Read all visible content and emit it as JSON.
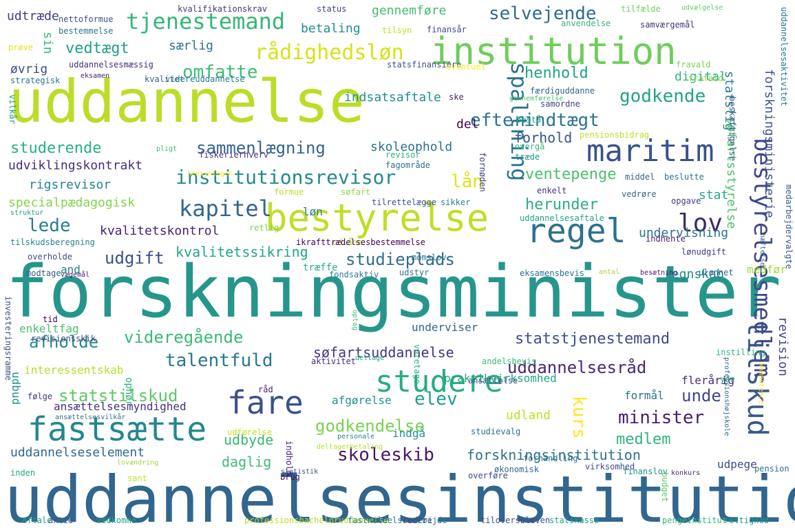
{
  "words": [
    {
      "text": "forskningsminister",
      "color": "#26968c"
    },
    {
      "text": "uddannelsesinstitution",
      "color": "#31668e"
    },
    {
      "text": "uddannelse",
      "color": "#bbdd28"
    },
    {
      "text": "institution",
      "color": "#6fcd5b"
    },
    {
      "text": "bestyrelse",
      "color": "#c0de27"
    },
    {
      "text": "maritim",
      "color": "#3a528b"
    },
    {
      "text": "studere",
      "color": "#27ad80"
    },
    {
      "text": "fastsætte",
      "color": "#23888e"
    },
    {
      "text": "fare",
      "color": "#3b518b"
    },
    {
      "text": "regel",
      "color": "#2c718e"
    },
    {
      "text": "kapitel",
      "color": "#32658e"
    },
    {
      "text": "lov",
      "color": "#3e2a69"
    },
    {
      "text": "tilskud",
      "color": "#38588c"
    },
    {
      "text": "bestyrelsesmedlem",
      "color": "#3f4888"
    },
    {
      "text": "spaltning",
      "color": "#2c738e"
    },
    {
      "text": "tjenestemand",
      "color": "#35b779"
    },
    {
      "text": "rådighedsløn",
      "color": "#d7e219"
    },
    {
      "text": "efterindtægt",
      "color": "#2b758e"
    },
    {
      "text": "vedtægt",
      "color": "#1fa088"
    },
    {
      "text": "omfatte",
      "color": "#3ebc73"
    },
    {
      "text": "selvejende",
      "color": "#2f6b8e"
    },
    {
      "text": "godkende",
      "color": "#23a383"
    },
    {
      "text": "henhold",
      "color": "#20a486"
    },
    {
      "text": "institutionsrevisor",
      "color": "#238a8d"
    },
    {
      "text": "sammenlægning",
      "color": "#33638d"
    },
    {
      "text": "studerende",
      "color": "#2ab07f"
    },
    {
      "text": "ventepenge",
      "color": "#4ac16d"
    },
    {
      "text": "lån",
      "color": "#dde318"
    },
    {
      "text": "forhold",
      "color": "#3b528b"
    },
    {
      "text": "herunder",
      "color": "#29af7f"
    },
    {
      "text": "lede",
      "color": "#287c8e"
    },
    {
      "text": "udgift",
      "color": "#3c4f8a"
    },
    {
      "text": "kvalitetssikring",
      "color": "#22a785"
    },
    {
      "text": "studieplads",
      "color": "#2e6e8e"
    },
    {
      "text": "undervisning",
      "color": "#2d718e"
    },
    {
      "text": "regnskab",
      "color": "#23898e"
    },
    {
      "text": "videregående",
      "color": "#3bbb75"
    },
    {
      "text": "statstjenestemand",
      "color": "#3d4d8a"
    },
    {
      "text": "søfartsuddannelse",
      "color": "#463480"
    },
    {
      "text": "uddannelsesråd",
      "color": "#482878"
    },
    {
      "text": "talentfuld",
      "color": "#2a778e"
    },
    {
      "text": "afholde",
      "color": "#238a8d"
    },
    {
      "text": "statstilskud",
      "color": "#5ec962"
    },
    {
      "text": "elev",
      "color": "#1f9e89"
    },
    {
      "text": "minister",
      "color": "#481f70"
    },
    {
      "text": "unde",
      "color": "#3f4788"
    },
    {
      "text": "medlem",
      "color": "#2fb47c"
    },
    {
      "text": "godkendelse",
      "color": "#7ad151"
    },
    {
      "text": "udland",
      "color": "#c2df23"
    },
    {
      "text": "skoleskib",
      "color": "#481668"
    },
    {
      "text": "forskningsinstitution",
      "color": "#2d708e"
    },
    {
      "text": "uddannelseselement",
      "color": "#31688e"
    },
    {
      "text": "udbyde",
      "color": "#38b977"
    },
    {
      "text": "daglig",
      "color": "#3fbc73"
    },
    {
      "text": "kurs",
      "color": "#fde725"
    },
    {
      "text": "revision",
      "color": "#414487"
    },
    {
      "text": "digital",
      "color": "#31b57b"
    },
    {
      "text": "statslig",
      "color": "#287d8e"
    },
    {
      "text": "søfartsstyrelse",
      "color": "#4ec36b"
    },
    {
      "text": "forskningsministerie",
      "color": "#3b528b"
    },
    {
      "text": "uddannelsesaktivitet",
      "color": "#2a788e"
    },
    {
      "text": "gennemføre",
      "color": "#44bf70"
    },
    {
      "text": "udtræde",
      "color": "#424086"
    },
    {
      "text": "betaling",
      "color": "#218f8d"
    },
    {
      "text": "særlig",
      "color": "#2c728e"
    },
    {
      "text": "sin",
      "color": "#35b779"
    },
    {
      "text": "øvrig",
      "color": "#3c508b"
    },
    {
      "text": "indsatsaftale",
      "color": "#21908d"
    },
    {
      "text": "del",
      "color": "#440154"
    },
    {
      "text": "skoleophold",
      "color": "#2c728e"
    },
    {
      "text": "udviklingskontrakt",
      "color": "#472d7b"
    },
    {
      "text": "rigsrevisor",
      "color": "#26828e"
    },
    {
      "text": "specialpædagogisk",
      "color": "#84d44b"
    },
    {
      "text": "løn",
      "color": "#287c8e"
    },
    {
      "text": "stat",
      "color": "#22a785"
    },
    {
      "text": "kvalitetskontrol",
      "color": "#482173"
    },
    {
      "text": "and",
      "color": "#277f8e"
    },
    {
      "text": "medfør",
      "color": "#a5db36"
    },
    {
      "text": "træffe",
      "color": "#2ab07f"
    },
    {
      "text": "enkeltfag",
      "color": "#4ac16d"
    },
    {
      "text": "underviser",
      "color": "#33638d"
    },
    {
      "text": "interessentskab",
      "color": "#b5de2b"
    },
    {
      "text": "ansættelsesmyndighed",
      "color": "#46307e"
    },
    {
      "text": "praktikvirksomhed",
      "color": "#22a884"
    },
    {
      "text": "afgørelse",
      "color": "#20928c"
    },
    {
      "text": "formål",
      "color": "#2c738e"
    },
    {
      "text": "flerårig",
      "color": "#472a7a"
    },
    {
      "text": "indgå",
      "color": "#21918c"
    },
    {
      "text": "udbud",
      "color": "#21918c"
    },
    {
      "text": "udpege",
      "color": "#3e4a89"
    },
    {
      "text": "kvalifikationskrav",
      "color": "#453781"
    },
    {
      "text": "status",
      "color": "#414487"
    },
    {
      "text": "tilfælde",
      "color": "#6ece58"
    },
    {
      "text": "udvælgelse",
      "color": "#5ec962"
    },
    {
      "text": "nettoformue",
      "color": "#3b528b"
    },
    {
      "text": "bestemmelse",
      "color": "#2a788e"
    },
    {
      "text": "tilsyn",
      "color": "#c2df23"
    },
    {
      "text": "finansår",
      "color": "#3e4989"
    },
    {
      "text": "anvendelse",
      "color": "#35b779"
    },
    {
      "text": "samværgemål",
      "color": "#46327e"
    },
    {
      "text": "prøve",
      "color": "#e5e419"
    },
    {
      "text": "uddannelsesmæssig",
      "color": "#472c7a"
    },
    {
      "text": "statsfinansiere",
      "color": "#3e4c8a"
    },
    {
      "text": "eventuel",
      "color": "#fde725"
    },
    {
      "text": "kvalitet",
      "color": "#34618d"
    },
    {
      "text": "fravald",
      "color": "#7ad151"
    },
    {
      "text": "frafald",
      "color": "#86d549"
    },
    {
      "text": "strategisk",
      "color": "#2a768e"
    },
    {
      "text": "eksamen",
      "color": "#481a6c"
    },
    {
      "text": "videreuddannelse",
      "color": "#297a8e"
    },
    {
      "text": "færdiguddanne",
      "color": "#355f8d"
    },
    {
      "text": "vilkår",
      "color": "#1f9e89"
    },
    {
      "text": "ske",
      "color": "#482475"
    },
    {
      "text": "gennemførelse",
      "color": "#46c06f"
    },
    {
      "text": "samordne",
      "color": "#424186"
    },
    {
      "text": "bestå",
      "color": "#1fa287"
    },
    {
      "text": "pensionsbidrag",
      "color": "#bddf26"
    },
    {
      "text": "beskæftigelse",
      "color": "#38588c"
    },
    {
      "text": "overgå",
      "color": "#35b779"
    },
    {
      "text": "pligt",
      "color": "#3dbc74"
    },
    {
      "text": "fiskerierhverv",
      "color": "#472e7c"
    },
    {
      "text": "revisor",
      "color": "#29af7f"
    },
    {
      "text": "træde",
      "color": "#1f968b"
    },
    {
      "text": "fagområde",
      "color": "#2c738e"
    },
    {
      "text": "fornøden",
      "color": "#414487"
    },
    {
      "text": "hensyntagen",
      "color": "#fde725"
    },
    {
      "text": "middel",
      "color": "#31678e"
    },
    {
      "text": "beslutte",
      "color": "#2a788e"
    },
    {
      "text": "formue",
      "color": "#bddf26"
    },
    {
      "text": "søfart",
      "color": "#90d743"
    },
    {
      "text": "tilrettelægge",
      "color": "#3b528b"
    },
    {
      "text": "enkelt",
      "color": "#472f7d"
    },
    {
      "text": "vedrøre",
      "color": "#31688e"
    },
    {
      "text": "opgave",
      "color": "#443a83"
    },
    {
      "text": "sikker",
      "color": "#25848e"
    },
    {
      "text": "struktur",
      "color": "#1f9a8a"
    },
    {
      "text": "retlig",
      "color": "#7fd34e"
    },
    {
      "text": "uddannelsesaftale",
      "color": "#20a386"
    },
    {
      "text": "indhente",
      "color": "#481b6d"
    },
    {
      "text": "lønudgift",
      "color": "#453882"
    },
    {
      "text": "medarbejdervalgte",
      "color": "#38588c"
    },
    {
      "text": "tilskudsberegning",
      "color": "#25848e"
    },
    {
      "text": "udlåne",
      "color": "#b2dd2d"
    },
    {
      "text": "ikrafttrædelsesbestemmelse",
      "color": "#440154"
    },
    {
      "text": "hæftelse",
      "color": "#33638d"
    },
    {
      "text": "overholde",
      "color": "#3e4a89"
    },
    {
      "text": "momslov",
      "color": "#2c718e"
    },
    {
      "text": "modtage",
      "color": "#38598c"
    },
    {
      "text": "vægemål",
      "color": "#48186a"
    },
    {
      "text": "fondsaktiv",
      "color": "#2a788e"
    },
    {
      "text": "udstyr",
      "color": "#2c728e"
    },
    {
      "text": "eksamensbevis",
      "color": "#2d718e"
    },
    {
      "text": "antal",
      "color": "#a2da37"
    },
    {
      "text": "besætning",
      "color": "#471365"
    },
    {
      "text": "ulønnet",
      "color": "#33638d"
    },
    {
      "text": "investeringsramme",
      "color": "#3d4d8a"
    },
    {
      "text": "tid",
      "color": "#440154"
    },
    {
      "text": "optag",
      "color": "#46c06f"
    },
    {
      "text": "revisionsskik",
      "color": "#404688"
    },
    {
      "text": "deltage",
      "color": "#1fa188"
    },
    {
      "text": "varetage",
      "color": "#2ab07f"
    },
    {
      "text": "instilling",
      "color": "#31b57b"
    },
    {
      "text": "aktivitet",
      "color": "#472c7a"
    },
    {
      "text": "andelsbevis",
      "color": "#3bbb75"
    },
    {
      "text": "professionshøjskole",
      "color": "#31688e"
    },
    {
      "text": "kompetence",
      "color": "#fde725"
    },
    {
      "text": "ophør",
      "color": "#2ab07f"
    },
    {
      "text": "yde",
      "color": "#20a486"
    },
    {
      "text": "følge",
      "color": "#46337f"
    },
    {
      "text": "råd",
      "color": "#481c6e"
    },
    {
      "text": "ansættelse",
      "color": "#3b528b"
    },
    {
      "text": "ansættelsesvilkår",
      "color": "#2c728e"
    },
    {
      "text": "udførelse",
      "color": "#c8e020"
    },
    {
      "text": "studievalg",
      "color": "#2f6c8e"
    },
    {
      "text": "personale",
      "color": "#26828e"
    },
    {
      "text": "deltagerbetaling",
      "color": "#b5de2b"
    },
    {
      "text": "indhold",
      "color": "#481f70"
    },
    {
      "text": "statistik",
      "color": "#3e4c8a"
    },
    {
      "text": "brug",
      "color": "#460b5e"
    },
    {
      "text": "forhandling",
      "color": "#2b758e"
    },
    {
      "text": "virksomhed",
      "color": "#3f4788"
    },
    {
      "text": "økonomisk",
      "color": "#33638d"
    },
    {
      "text": "konkurs",
      "color": "#482979"
    },
    {
      "text": "inden",
      "color": "#22a785"
    },
    {
      "text": "lovændring",
      "color": "#9bd93c"
    },
    {
      "text": "sant",
      "color": "#bddf26"
    },
    {
      "text": "overføre",
      "color": "#3f4788"
    },
    {
      "text": "finanslov",
      "color": "#21918c"
    },
    {
      "text": "budget",
      "color": "#5cc863"
    },
    {
      "text": "pension",
      "color": "#2c728e"
    },
    {
      "text": "aftale",
      "color": "#1fa088"
    },
    {
      "text": "aktie",
      "color": "#38588c"
    },
    {
      "text": "vedkomme",
      "color": "#1fa188"
    },
    {
      "text": "professionsbacheloruddannelse",
      "color": "#b8de29"
    },
    {
      "text": "fastholdelsesarbejde",
      "color": "#2a778e"
    },
    {
      "text": "rederi",
      "color": "#404588"
    },
    {
      "text": "tiloversbleven",
      "color": "#3e4a89"
    },
    {
      "text": "statskasse",
      "color": "#1f9e89"
    },
    {
      "text": "pengeinstitut",
      "color": "#35b779"
    },
    {
      "text": "rettighed",
      "color": "#1f9a8a"
    },
    {
      "text": "forbindelse",
      "color": "#2c718e"
    }
  ]
}
